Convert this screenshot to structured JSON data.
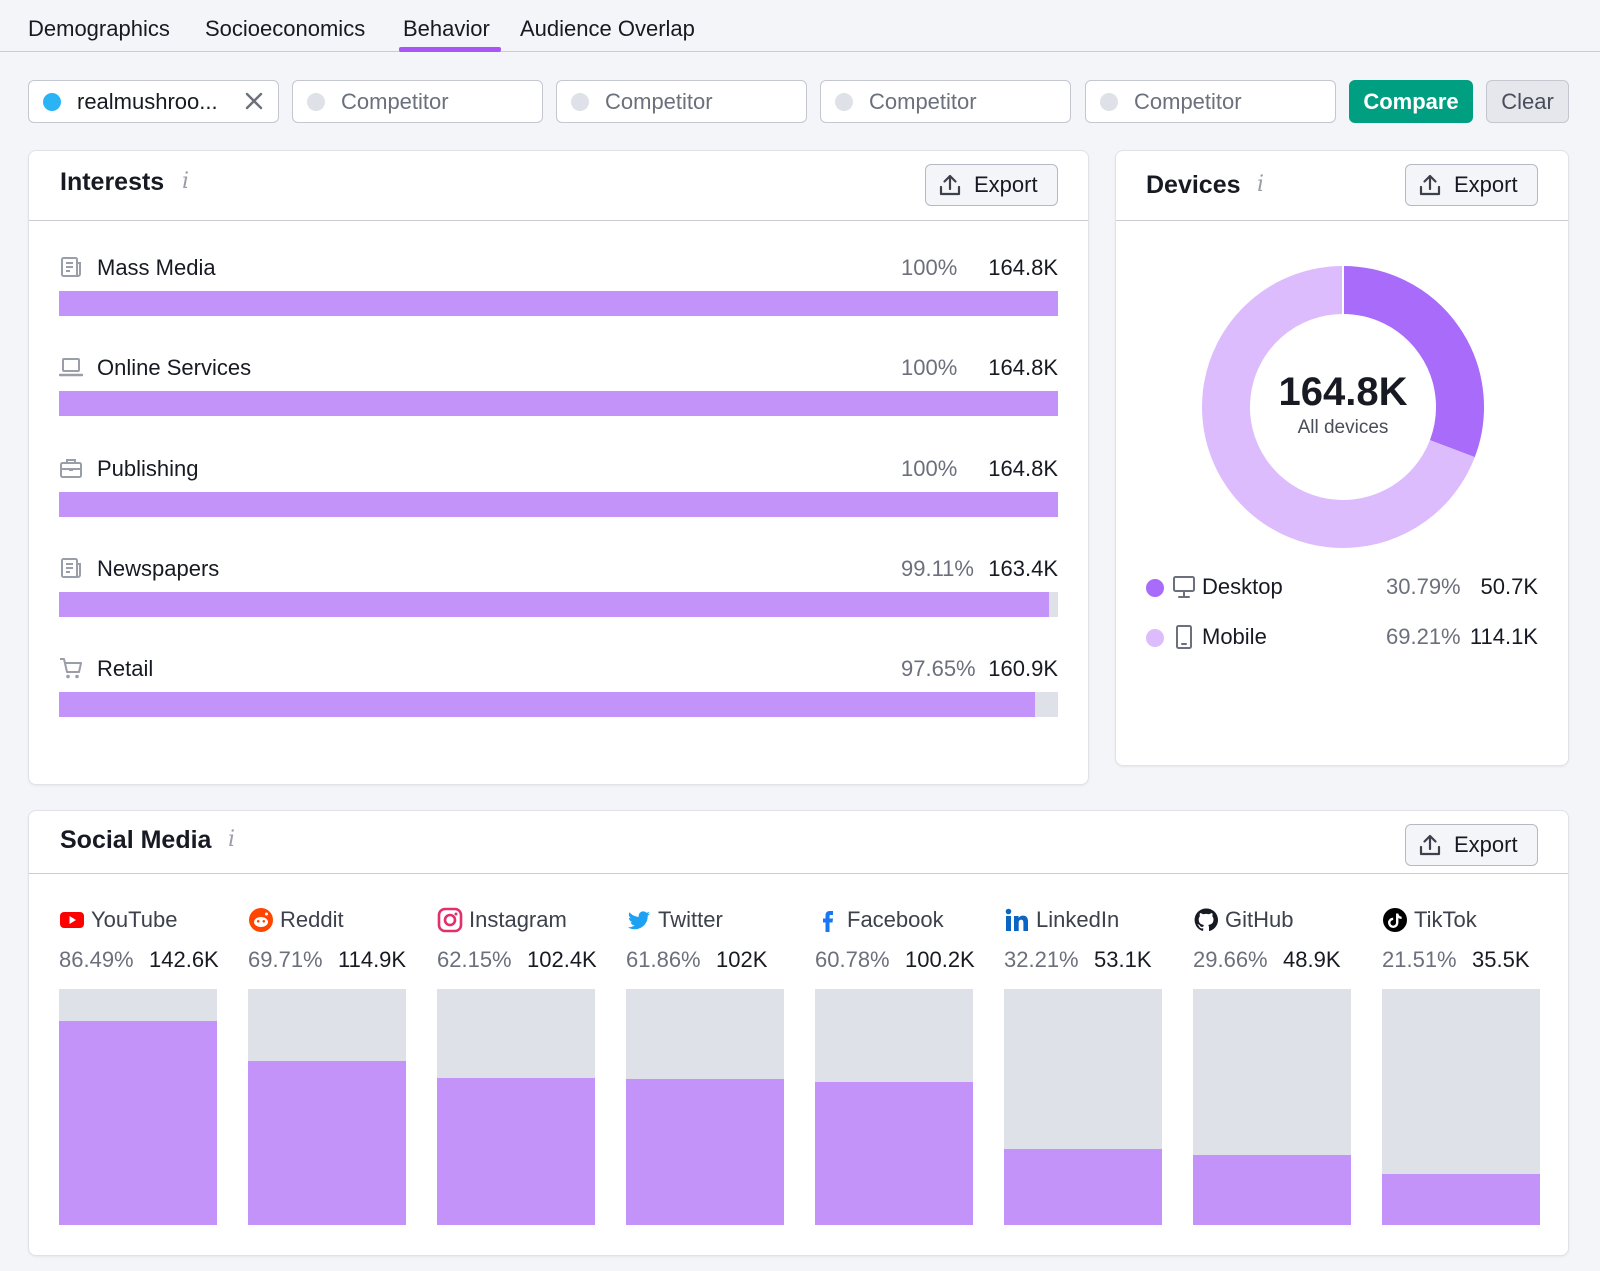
{
  "tabs": [
    {
      "label": "Demographics",
      "active": false
    },
    {
      "label": "Socioeconomics",
      "active": false
    },
    {
      "label": "Behavior",
      "active": true
    },
    {
      "label": "Audience Overlap",
      "active": false
    }
  ],
  "competitors": {
    "main_domain": "realmushroo...",
    "placeholder": "Competitor",
    "compare_label": "Compare",
    "clear_label": "Clear"
  },
  "interests": {
    "title": "Interests",
    "info": "i",
    "export_label": "Export",
    "items": [
      {
        "label": "Mass Media",
        "icon": "newspaper-icon",
        "pct": "100%",
        "value": "164.8K",
        "fill": 1.0
      },
      {
        "label": "Online Services",
        "icon": "laptop-icon",
        "pct": "100%",
        "value": "164.8K",
        "fill": 1.0
      },
      {
        "label": "Publishing",
        "icon": "briefcase-icon",
        "pct": "100%",
        "value": "164.8K",
        "fill": 1.0
      },
      {
        "label": "Newspapers",
        "icon": "newspaper-icon",
        "pct": "99.11%",
        "value": "163.4K",
        "fill": 0.9911
      },
      {
        "label": "Retail",
        "icon": "cart-icon",
        "pct": "97.65%",
        "value": "160.9K",
        "fill": 0.9765
      }
    ]
  },
  "devices": {
    "title": "Devices",
    "info": "i",
    "export_label": "Export",
    "total": "164.8K",
    "total_label": "All devices",
    "items": [
      {
        "label": "Desktop",
        "pct": "30.79%",
        "value": "50.7K",
        "share": 0.3079,
        "color": "#a96bf9",
        "icon": "desktop-icon"
      },
      {
        "label": "Mobile",
        "pct": "69.21%",
        "value": "114.1K",
        "share": 0.6921,
        "color": "#dcbcfd",
        "icon": "mobile-icon"
      }
    ]
  },
  "social": {
    "title": "Social Media",
    "info": "i",
    "export_label": "Export",
    "items": [
      {
        "name": "YouTube",
        "icon": "youtube-icon",
        "pct": "86.49%",
        "value": "142.6K",
        "share": 0.8649
      },
      {
        "name": "Reddit",
        "icon": "reddit-icon",
        "pct": "69.71%",
        "value": "114.9K",
        "share": 0.6971
      },
      {
        "name": "Instagram",
        "icon": "instagram-icon",
        "pct": "62.15%",
        "value": "102.4K",
        "share": 0.6215
      },
      {
        "name": "Twitter",
        "icon": "twitter-icon",
        "pct": "61.86%",
        "value": "102K",
        "share": 0.6186
      },
      {
        "name": "Facebook",
        "icon": "facebook-icon",
        "pct": "60.78%",
        "value": "100.2K",
        "share": 0.6078
      },
      {
        "name": "LinkedIn",
        "icon": "linkedin-icon",
        "pct": "32.21%",
        "value": "53.1K",
        "share": 0.3221
      },
      {
        "name": "GitHub",
        "icon": "github-icon",
        "pct": "29.66%",
        "value": "48.9K",
        "share": 0.2966
      },
      {
        "name": "TikTok",
        "icon": "tiktok-icon",
        "pct": "21.51%",
        "value": "35.5K",
        "share": 0.2151
      }
    ]
  },
  "colors": {
    "accent": "#a855f7",
    "bar_fill": "#c493fa",
    "bar_track": "#dfe1e8",
    "compare": "#009f81",
    "domain_dot": "#2bb4f5"
  }
}
